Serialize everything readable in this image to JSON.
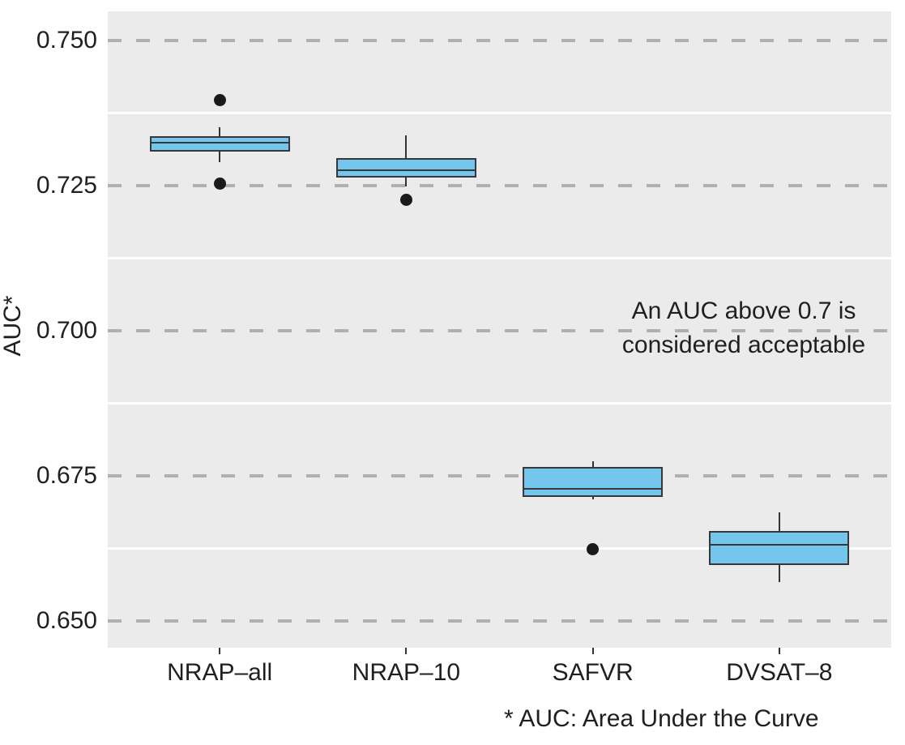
{
  "chart_data": {
    "type": "boxplot",
    "title": "",
    "xlabel": "",
    "ylabel": "AUC*",
    "footnote": "* AUC: Area Under the Curve",
    "annotation": {
      "text": [
        "An AUC above 0.7 is",
        "considered acceptable"
      ],
      "anchor_value": 0.7
    },
    "legend": "none",
    "grid": "major-dashed-gray, minor-solid-white",
    "ylim": [
      0.6454,
      0.755
    ],
    "categories": [
      "NRAP–all",
      "NRAP–10",
      "SAFVR",
      "DVSAT–8"
    ],
    "yticks": [
      {
        "value": 0.65,
        "label": "0.650"
      },
      {
        "value": 0.675,
        "label": "0.675"
      },
      {
        "value": 0.7,
        "label": "0.700"
      },
      {
        "value": 0.725,
        "label": "0.725"
      },
      {
        "value": 0.75,
        "label": "0.750"
      }
    ],
    "minor_gridlines": [
      0.6625,
      0.6875,
      0.7125,
      0.7375
    ],
    "boxes": [
      {
        "category": "NRAP–all",
        "whisker_low": 0.7291,
        "q1": 0.7309,
        "median": 0.7324,
        "q3": 0.7335,
        "whisker_high": 0.7351,
        "outliers": [
          0.7397,
          0.7254
        ]
      },
      {
        "category": "NRAP–10",
        "whisker_low": 0.7249,
        "q1": 0.7264,
        "median": 0.7277,
        "q3": 0.7297,
        "whisker_high": 0.7337,
        "outliers": [
          0.7225
        ]
      },
      {
        "category": "SAFVR",
        "whisker_low": 0.6709,
        "q1": 0.6714,
        "median": 0.6728,
        "q3": 0.6765,
        "whisker_high": 0.6775,
        "outliers": [
          0.6623
        ]
      },
      {
        "category": "DVSAT–8",
        "whisker_low": 0.6567,
        "q1": 0.6596,
        "median": 0.6631,
        "q3": 0.6655,
        "whisker_high": 0.6687,
        "outliers": []
      }
    ],
    "colors": {
      "box_fill": "#74C6EC",
      "box_stroke": "#383838",
      "whisker": "#333333",
      "outlier": "#1A1A1A",
      "panel_bg": "#EBEBEB",
      "major_grid": "#B0B0B0",
      "minor_grid": "#FFFFFF",
      "text": "#1F1F1F"
    }
  }
}
